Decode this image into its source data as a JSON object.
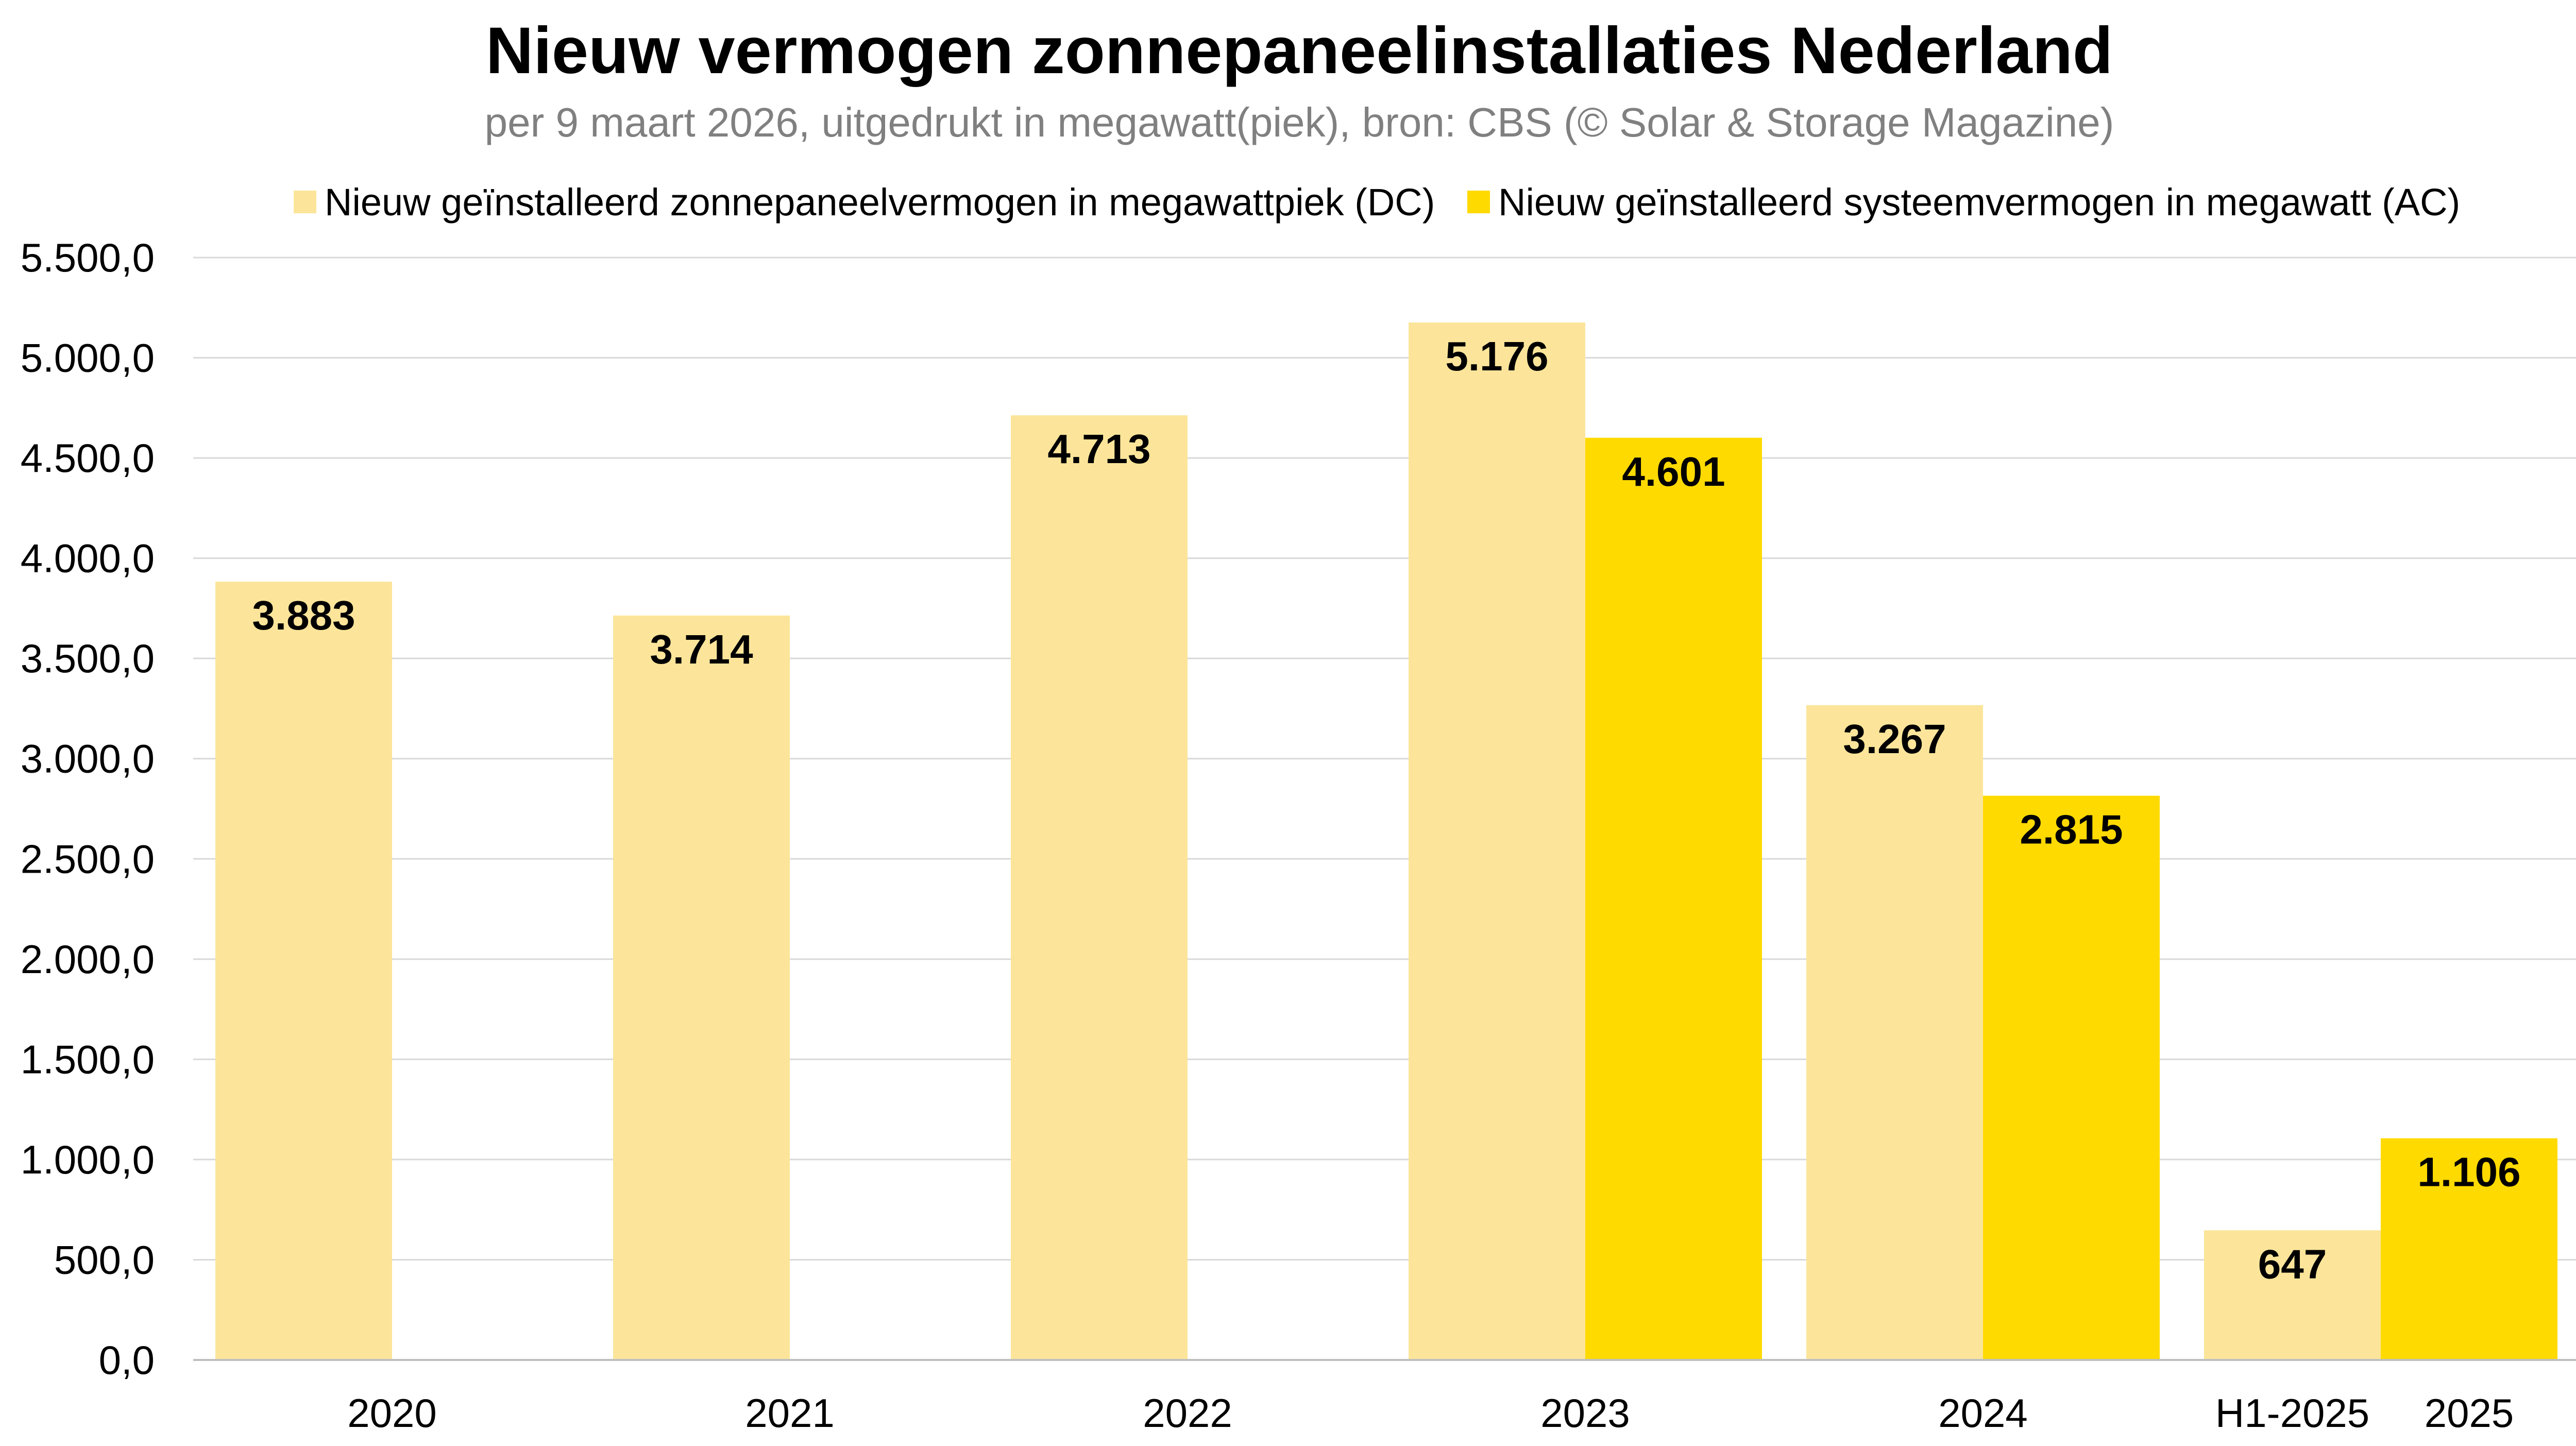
{
  "chart_data": {
    "type": "bar",
    "title": "Nieuw vermogen zonnepaneelinstallaties Nederland",
    "subtitle": "per 9 maart 2026, uitgedrukt in megawatt(piek), bron: CBS (© Solar & Storage Magazine)",
    "xlabel": "",
    "ylabel": "",
    "ylim": [
      0,
      5500
    ],
    "y_ticks": [
      "0,0",
      "500,0",
      "1.000,0",
      "1.500,0",
      "2.000,0",
      "2.500,0",
      "3.000,0",
      "3.500,0",
      "4.000,0",
      "4.500,0",
      "5.000,0",
      "5.500,0"
    ],
    "grid": true,
    "legend_position": "top",
    "categories": [
      "2020",
      "2021",
      "2022",
      "2023",
      "2024",
      "H1-2025",
      "2025"
    ],
    "series": [
      {
        "name": "Nieuw geïnstalleerd zonnepaneelvermogen in megawattpiek (DC)",
        "color": "#FCE59A",
        "points": [
          {
            "category": "2020",
            "value": 3883,
            "label": "3.883"
          },
          {
            "category": "2021",
            "value": 3714,
            "label": "3.714"
          },
          {
            "category": "2022",
            "value": 4713,
            "label": "4.713"
          },
          {
            "category": "2023",
            "value": 5176,
            "label": "5.176"
          },
          {
            "category": "2024",
            "value": 3267,
            "label": "3.267"
          },
          {
            "category": "H1-2025",
            "value": 647,
            "label": "647"
          }
        ]
      },
      {
        "name": "Nieuw geïnstalleerd systeemvermogen in megawatt (AC)",
        "color": "#FFDA00",
        "points": [
          {
            "category": "2023",
            "value": 4601,
            "label": "4.601"
          },
          {
            "category": "2024",
            "value": 2815,
            "label": "2.815"
          },
          {
            "category": "2025",
            "value": 1106,
            "label": "1.106"
          }
        ]
      }
    ]
  }
}
